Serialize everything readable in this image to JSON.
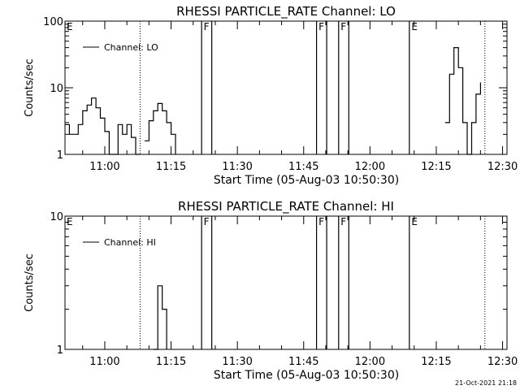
{
  "chart_data": [
    {
      "type": "line",
      "title": "RHESSI PARTICLE_RATE Channel: LO",
      "xlabel": "Start Time (05-Aug-03 10:50:30)",
      "ylabel": "Counts/sec",
      "yscale": "log",
      "ylim": [
        1,
        100
      ],
      "y_ticks": [
        "1",
        "10",
        "100"
      ],
      "xlim": [
        "10:51",
        "12:31"
      ],
      "x_ticks": [
        "11:00",
        "11:15",
        "11:30",
        "11:45",
        "12:00",
        "12:15",
        "12:30"
      ],
      "legend": {
        "position": "top-left",
        "entries": [
          "Channel: LO"
        ]
      },
      "series": [
        {
          "name": "Channel: LO",
          "segments": [
            {
              "x": [
                "10:51",
                "10:52",
                "10:53",
                "10:54",
                "10:55",
                "10:56",
                "10:57",
                "10:58",
                "10:59",
                "11:00",
                "11:01",
                "11:02",
                "11:03",
                "11:04",
                "11:05",
                "11:06",
                "11:07",
                "11:08"
              ],
              "y": [
                2.8,
                2,
                2,
                2.8,
                4.5,
                5.5,
                7,
                5,
                3.5,
                2.2,
                1,
                1,
                2.8,
                2,
                2.8,
                1.8,
                1,
                1
              ]
            },
            {
              "x": [
                "11:09",
                "11:10",
                "11:11",
                "11:12",
                "11:13",
                "11:14",
                "11:15",
                "11:16"
              ],
              "y": [
                1.6,
                3.2,
                4.5,
                5.8,
                4.5,
                3,
                2,
                1
              ]
            },
            {
              "x": [
                "12:17",
                "12:18",
                "12:19",
                "12:20",
                "12:21",
                "12:22",
                "12:23",
                "12:24",
                "12:25"
              ],
              "y": [
                3,
                16,
                40,
                20,
                3,
                1,
                3,
                8,
                12
              ]
            }
          ]
        }
      ],
      "flags": [
        {
          "letter": "E",
          "time": "10:51"
        },
        {
          "letter": "F",
          "time": "11:22"
        },
        {
          "letter": "F",
          "time": "11:48"
        },
        {
          "letter": "F",
          "time": "11:53"
        },
        {
          "letter": "E",
          "time": "12:09"
        }
      ],
      "dotted_markers": [
        "11:08",
        "12:26"
      ]
    },
    {
      "type": "line",
      "title": "RHESSI PARTICLE_RATE Channel: HI",
      "xlabel": "Start Time (05-Aug-03 10:50:30)",
      "ylabel": "Counts/sec",
      "yscale": "log",
      "ylim": [
        1,
        10
      ],
      "y_ticks": [
        "1",
        "10"
      ],
      "xlim": [
        "10:51",
        "12:31"
      ],
      "x_ticks": [
        "11:00",
        "11:15",
        "11:30",
        "11:45",
        "12:00",
        "12:15",
        "12:30"
      ],
      "legend": {
        "position": "top-left",
        "entries": [
          "Channel: HI"
        ]
      },
      "series": [
        {
          "name": "Channel: HI",
          "segments": [
            {
              "x": [
                "11:11",
                "11:12",
                "11:13",
                "11:14"
              ],
              "y": [
                1,
                3,
                2,
                1
              ]
            }
          ]
        }
      ],
      "flags": [
        {
          "letter": "E",
          "time": "10:51"
        },
        {
          "letter": "F",
          "time": "11:22"
        },
        {
          "letter": "F",
          "time": "11:48"
        },
        {
          "letter": "F",
          "time": "11:53"
        },
        {
          "letter": "E",
          "time": "12:09"
        }
      ],
      "dotted_markers": [
        "11:08",
        "12:26"
      ]
    }
  ],
  "footer": {
    "timestamp": "21-Oct-2021 21:18"
  }
}
